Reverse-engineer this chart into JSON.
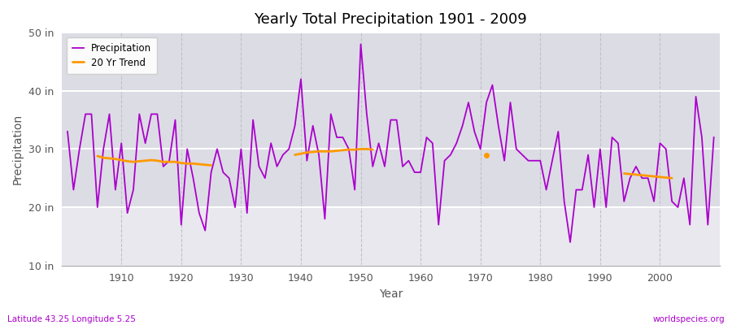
{
  "title": "Yearly Total Precipitation 1901 - 2009",
  "xlabel": "Year",
  "ylabel": "Precipitation",
  "lat_lon_label": "Latitude 43.25 Longitude 5.25",
  "watermark": "worldspecies.org",
  "ylim": [
    10,
    50
  ],
  "yticks": [
    10,
    20,
    30,
    40,
    50
  ],
  "ytick_labels": [
    "10 in",
    "20 in",
    "30 in",
    "40 in",
    "50 in"
  ],
  "xlim_start": 1901,
  "xlim_end": 2009,
  "bg_upper": "#dcdce4",
  "bg_lower": "#e8e8ee",
  "precip_color": "#aa00cc",
  "trend_color": "#ff9900",
  "years": [
    1901,
    1902,
    1903,
    1904,
    1905,
    1906,
    1907,
    1908,
    1909,
    1910,
    1911,
    1912,
    1913,
    1914,
    1915,
    1916,
    1917,
    1918,
    1919,
    1920,
    1921,
    1922,
    1923,
    1924,
    1925,
    1926,
    1927,
    1928,
    1929,
    1930,
    1931,
    1932,
    1933,
    1934,
    1935,
    1936,
    1937,
    1938,
    1939,
    1940,
    1941,
    1942,
    1943,
    1944,
    1945,
    1946,
    1947,
    1948,
    1949,
    1950,
    1951,
    1952,
    1953,
    1954,
    1955,
    1956,
    1957,
    1958,
    1959,
    1960,
    1961,
    1962,
    1963,
    1964,
    1965,
    1966,
    1967,
    1968,
    1969,
    1970,
    1971,
    1972,
    1973,
    1974,
    1975,
    1976,
    1977,
    1978,
    1979,
    1980,
    1981,
    1982,
    1983,
    1984,
    1985,
    1986,
    1987,
    1988,
    1989,
    1990,
    1991,
    1992,
    1993,
    1994,
    1995,
    1996,
    1997,
    1998,
    1999,
    2000,
    2001,
    2002,
    2003,
    2004,
    2005,
    2006,
    2007,
    2008,
    2009
  ],
  "precip": [
    33,
    23,
    30,
    36,
    36,
    20,
    30,
    36,
    23,
    31,
    19,
    23,
    36,
    31,
    36,
    36,
    27,
    28,
    35,
    17,
    30,
    25,
    19,
    16,
    26,
    30,
    26,
    25,
    20,
    30,
    19,
    35,
    27,
    25,
    31,
    27,
    29,
    30,
    34,
    42,
    28,
    34,
    29,
    18,
    36,
    32,
    32,
    30,
    23,
    48,
    36,
    27,
    31,
    27,
    35,
    35,
    27,
    28,
    26,
    26,
    32,
    31,
    17,
    28,
    29,
    31,
    34,
    38,
    33,
    30,
    38,
    41,
    34,
    28,
    38,
    30,
    29,
    28,
    28,
    28,
    23,
    28,
    33,
    21,
    14,
    23,
    23,
    29,
    20,
    30,
    20,
    32,
    31,
    21,
    25,
    27,
    25,
    25,
    21,
    31,
    30,
    21,
    20,
    25,
    17,
    39,
    32,
    17,
    32
  ],
  "trend_segments": [
    {
      "years": [
        1906,
        1907,
        1908,
        1909,
        1910,
        1911,
        1912,
        1913,
        1914,
        1915,
        1916,
        1917,
        1918,
        1919,
        1920,
        1921,
        1922,
        1923,
        1924,
        1925
      ],
      "values": [
        28.8,
        28.5,
        28.4,
        28.3,
        28.1,
        27.9,
        27.8,
        27.9,
        28.0,
        28.1,
        28.0,
        27.8,
        27.8,
        27.8,
        27.6,
        27.5,
        27.5,
        27.4,
        27.3,
        27.2
      ]
    },
    {
      "years": [
        1939,
        1940,
        1941,
        1942,
        1943,
        1944,
        1945,
        1946,
        1947,
        1948,
        1949,
        1950,
        1951,
        1952
      ],
      "values": [
        29.0,
        29.2,
        29.4,
        29.5,
        29.6,
        29.6,
        29.6,
        29.7,
        29.8,
        29.9,
        29.9,
        30.0,
        30.0,
        29.9
      ]
    },
    {
      "years": [
        1971
      ],
      "values": [
        29.0
      ]
    },
    {
      "years": [
        1994,
        1995,
        1996,
        1997,
        1998,
        1999,
        2000,
        2001,
        2002
      ],
      "values": [
        25.8,
        25.7,
        25.6,
        25.5,
        25.4,
        25.3,
        25.2,
        25.1,
        25.0
      ]
    }
  ]
}
